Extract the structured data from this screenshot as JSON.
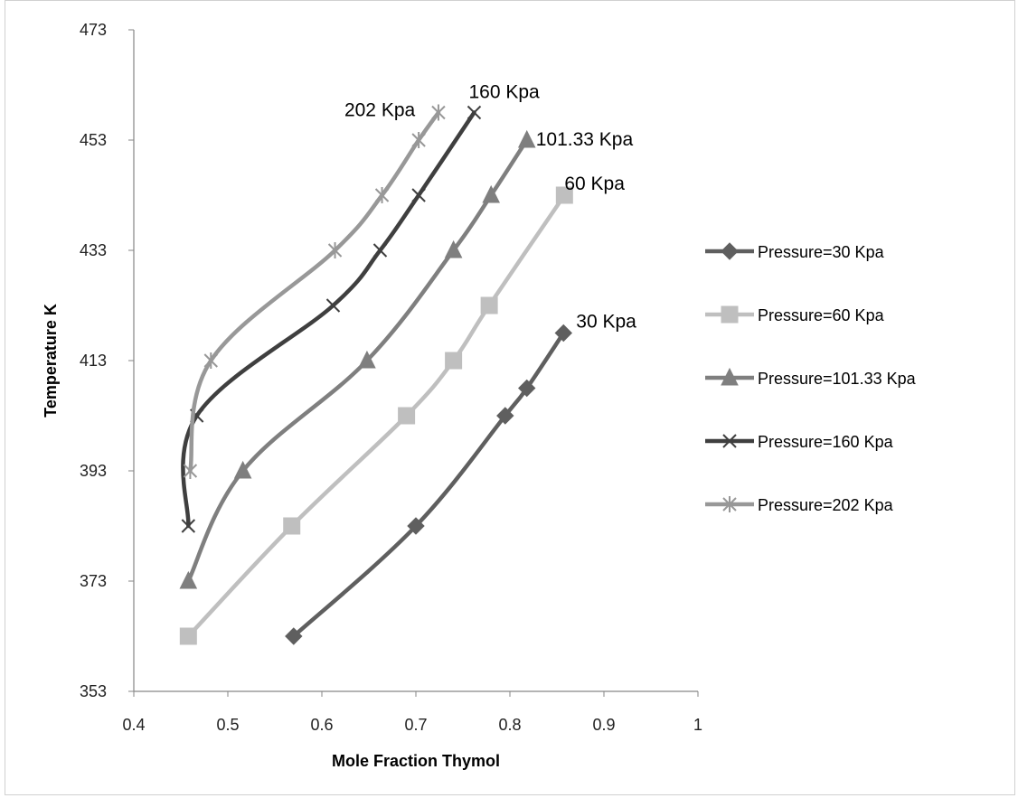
{
  "chart_data": {
    "type": "line",
    "title": "",
    "xlabel": "Mole Fraction Thymol",
    "ylabel": "Temperature K",
    "xlim": [
      0.4,
      1.0
    ],
    "ylim": [
      353,
      473
    ],
    "xticks": [
      "0.4",
      "0.5",
      "0.6",
      "0.7",
      "0.8",
      "0.9",
      "1"
    ],
    "yticks": [
      "353",
      "373",
      "393",
      "413",
      "433",
      "453",
      "473"
    ],
    "grid": false,
    "legend_position": "right",
    "series": [
      {
        "name": "Pressure=30 Kpa",
        "label": "30 Kpa",
        "marker": "diamond",
        "color": "#5f5f5f",
        "points": [
          [
            0.57,
            363
          ],
          [
            0.7,
            383
          ],
          [
            0.795,
            403
          ],
          [
            0.818,
            408
          ],
          [
            0.857,
            418
          ]
        ]
      },
      {
        "name": "Pressure=60 Kpa",
        "label": "60 Kpa",
        "marker": "square",
        "color": "#bfbfbf",
        "points": [
          [
            0.458,
            363
          ],
          [
            0.568,
            383
          ],
          [
            0.69,
            403
          ],
          [
            0.74,
            413
          ],
          [
            0.778,
            423
          ],
          [
            0.858,
            443
          ]
        ]
      },
      {
        "name": "Pressure=101.33 Kpa",
        "label": "101.33 Kpa",
        "marker": "triangle",
        "color": "#7f7f7f",
        "points": [
          [
            0.458,
            373
          ],
          [
            0.516,
            393
          ],
          [
            0.648,
            413
          ],
          [
            0.74,
            433
          ],
          [
            0.78,
            443
          ],
          [
            0.818,
            453
          ]
        ]
      },
      {
        "name": "Pressure=160 Kpa",
        "label": "160 Kpa",
        "marker": "x",
        "color": "#3f3f3f",
        "points": [
          [
            0.458,
            383
          ],
          [
            0.467,
            403
          ],
          [
            0.612,
            423
          ],
          [
            0.662,
            433
          ],
          [
            0.703,
            443
          ],
          [
            0.762,
            458
          ]
        ]
      },
      {
        "name": "Pressure=202 Kpa",
        "label": "202 Kpa",
        "marker": "star",
        "color": "#989898",
        "points": [
          [
            0.46,
            393
          ],
          [
            0.482,
            413
          ],
          [
            0.614,
            433
          ],
          [
            0.664,
            443
          ],
          [
            0.703,
            453
          ],
          [
            0.724,
            458
          ]
        ]
      }
    ]
  }
}
